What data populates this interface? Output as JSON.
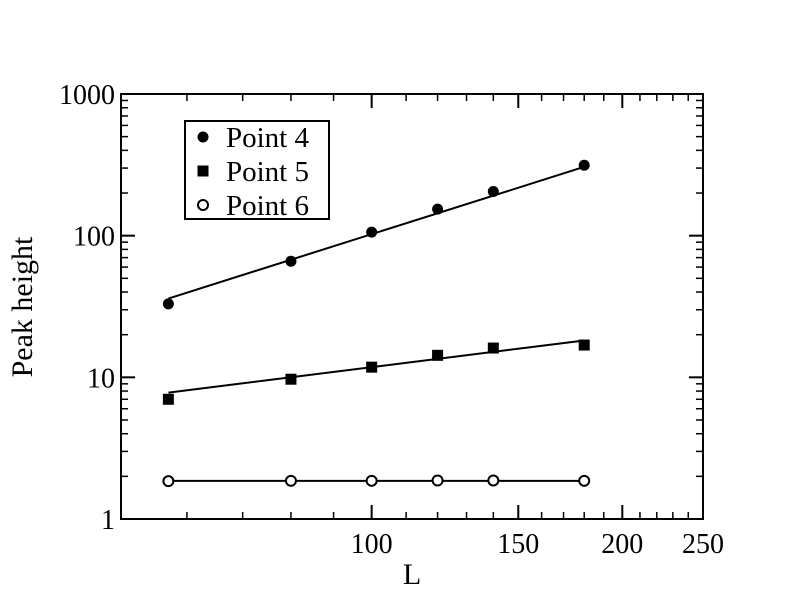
{
  "chart_data": {
    "type": "scatter",
    "title": "",
    "xlabel": "L",
    "ylabel": "Peak height",
    "x_scale": "log",
    "y_scale": "log",
    "xlim": [
      50,
      250
    ],
    "ylim": [
      1,
      1000
    ],
    "x_ticks": [
      100,
      150,
      200,
      250
    ],
    "y_ticks": [
      1,
      10,
      100,
      1000
    ],
    "grid": false,
    "legend_position": "top-left",
    "series": [
      {
        "name": "Point 4",
        "marker": "filled-circle",
        "x": [
          57,
          80,
          100,
          120,
          140,
          180
        ],
        "y": [
          33,
          66,
          106,
          154,
          205,
          314
        ],
        "fit": {
          "x": [
            57,
            180
          ],
          "y": [
            36,
            306
          ]
        }
      },
      {
        "name": "Point 5",
        "marker": "filled-square",
        "x": [
          57,
          80,
          100,
          120,
          140,
          180
        ],
        "y": [
          7,
          9.7,
          11.8,
          14.3,
          16.1,
          16.9
        ],
        "fit": {
          "x": [
            57,
            180
          ],
          "y": [
            7.8,
            18.2
          ]
        }
      },
      {
        "name": "Point 6",
        "marker": "open-circle",
        "x": [
          57,
          80,
          100,
          120,
          140,
          180
        ],
        "y": [
          1.85,
          1.86,
          1.86,
          1.87,
          1.87,
          1.86
        ],
        "fit": {
          "x": [
            57,
            180
          ],
          "y": [
            1.86,
            1.86
          ]
        }
      }
    ]
  }
}
